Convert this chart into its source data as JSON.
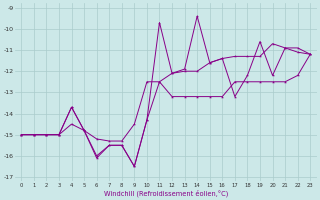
{
  "xlabel": "Windchill (Refroidissement éolien,°C)",
  "background_color": "#cce8e8",
  "grid_color": "#aacccc",
  "line_color": "#880088",
  "hours": [
    0,
    1,
    2,
    3,
    4,
    5,
    6,
    7,
    8,
    9,
    10,
    11,
    12,
    13,
    14,
    15,
    16,
    17,
    18,
    19,
    20,
    21,
    22,
    23
  ],
  "series_jagged": [
    -15,
    -15,
    -15,
    -15,
    -13.7,
    -14.8,
    -16.1,
    -15.5,
    -15.5,
    -16.5,
    -14.3,
    -9.7,
    -12.1,
    -11.9,
    -9.4,
    -11.6,
    -11.4,
    -13.2,
    -12.2,
    -10.6,
    -12.2,
    -10.9,
    -11.1,
    -11.2
  ],
  "series_upper": [
    -15,
    -15,
    -15,
    -15,
    -13.7,
    -14.8,
    -15.2,
    -15.3,
    -15.3,
    -14.5,
    -12.5,
    -12.5,
    -12.1,
    -12.0,
    -12.0,
    -11.6,
    -11.4,
    -11.3,
    -11.3,
    -11.3,
    -10.7,
    -10.9,
    -10.9,
    -11.2
  ],
  "series_lower": [
    -15,
    -15,
    -15,
    -15,
    -14.5,
    -14.8,
    -16.0,
    -15.5,
    -15.5,
    -16.5,
    -14.3,
    -12.5,
    -13.2,
    -13.2,
    -13.2,
    -13.2,
    -13.2,
    -12.5,
    -12.5,
    -12.5,
    -12.5,
    -12.5,
    -12.2,
    -11.2
  ],
  "xlim": [
    -0.5,
    23.5
  ],
  "ylim": [
    -17.2,
    -8.8
  ],
  "yticks": [
    -17,
    -16,
    -15,
    -14,
    -13,
    -12,
    -11,
    -10,
    -9
  ],
  "xticks": [
    0,
    1,
    2,
    3,
    4,
    5,
    6,
    7,
    8,
    9,
    10,
    11,
    12,
    13,
    14,
    15,
    16,
    17,
    18,
    19,
    20,
    21,
    22,
    23
  ]
}
